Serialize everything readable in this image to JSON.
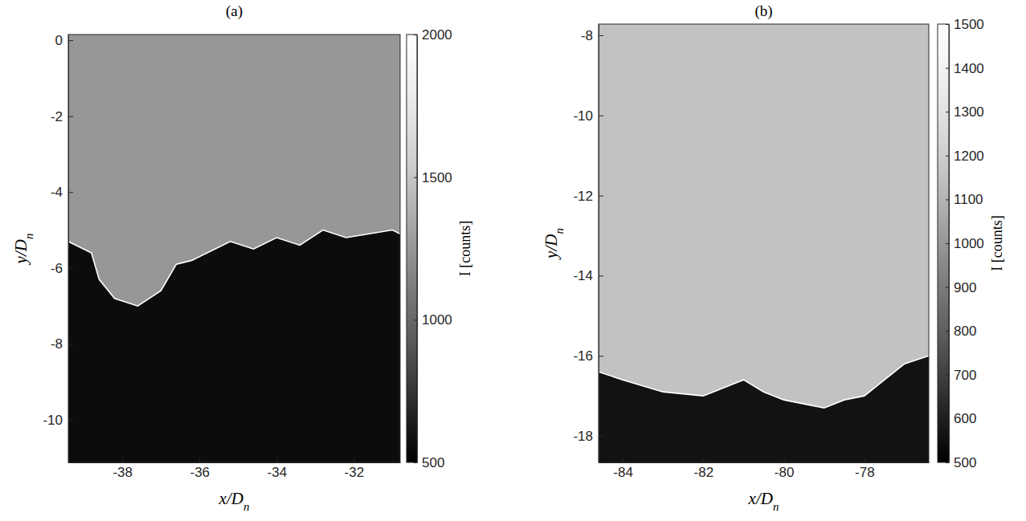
{
  "chart_data": [
    {
      "type": "contour",
      "title": "(a)",
      "x_label": "x/Dn",
      "y_label": "y/Dn",
      "xlim": [
        -39.4,
        -30.8
      ],
      "ylim": [
        -11.12,
        0.15
      ],
      "xticks": [
        -38,
        -36,
        -34,
        -32
      ],
      "yticks": [
        -10,
        -8,
        -6,
        -4,
        -2,
        0
      ],
      "plume_intensity": 1250,
      "ambient_intensity": 560,
      "series": [
        {
          "color": "#ffffff",
          "x": [
            -39.4,
            -38.8,
            -38.6,
            -38.2,
            -37.6,
            -37.0,
            -36.6,
            -36.2,
            -35.8,
            -35.2,
            -34.6,
            -34.0,
            -33.4,
            -32.8,
            -32.2,
            -31.6,
            -31.0,
            -30.8
          ],
          "y": [
            -5.3,
            -5.6,
            -6.3,
            -6.8,
            -7.0,
            -6.6,
            -5.9,
            -5.8,
            -5.6,
            -5.3,
            -5.5,
            -5.2,
            -5.4,
            -5.0,
            -5.2,
            -5.1,
            -5.0,
            -5.1
          ]
        }
      ],
      "colorbar": {
        "label": "I [counts]",
        "range": [
          500,
          2000
        ],
        "ticks": [
          500,
          1000,
          1500,
          2000
        ]
      }
    },
    {
      "type": "contour",
      "title": "(b)",
      "x_label": "x/Dn",
      "y_label": "y/Dn",
      "xlim": [
        -84.6,
        -76.4
      ],
      "ylim": [
        -18.66,
        -7.72
      ],
      "xticks": [
        -84,
        -82,
        -80,
        -78
      ],
      "yticks": [
        -18,
        -16,
        -14,
        -12,
        -10,
        -8
      ],
      "plume_intensity": 1150,
      "ambient_intensity": 560,
      "series": [
        {
          "color": "#ffffff",
          "x": [
            -84.6,
            -84.0,
            -83.0,
            -82.0,
            -81.0,
            -80.5,
            -80.0,
            -79.5,
            -79.0,
            -78.5,
            -78.0,
            -77.5,
            -77.0,
            -76.4
          ],
          "y": [
            -16.4,
            -16.6,
            -16.9,
            -17.0,
            -16.6,
            -16.9,
            -17.1,
            -17.2,
            -17.3,
            -17.1,
            -17.0,
            -16.6,
            -16.2,
            -16.0
          ]
        }
      ],
      "colorbar": {
        "label": "I [counts]",
        "range": [
          500,
          1500
        ],
        "ticks": [
          500,
          600,
          700,
          800,
          900,
          1000,
          1100,
          1200,
          1300,
          1400,
          1500
        ]
      }
    }
  ]
}
